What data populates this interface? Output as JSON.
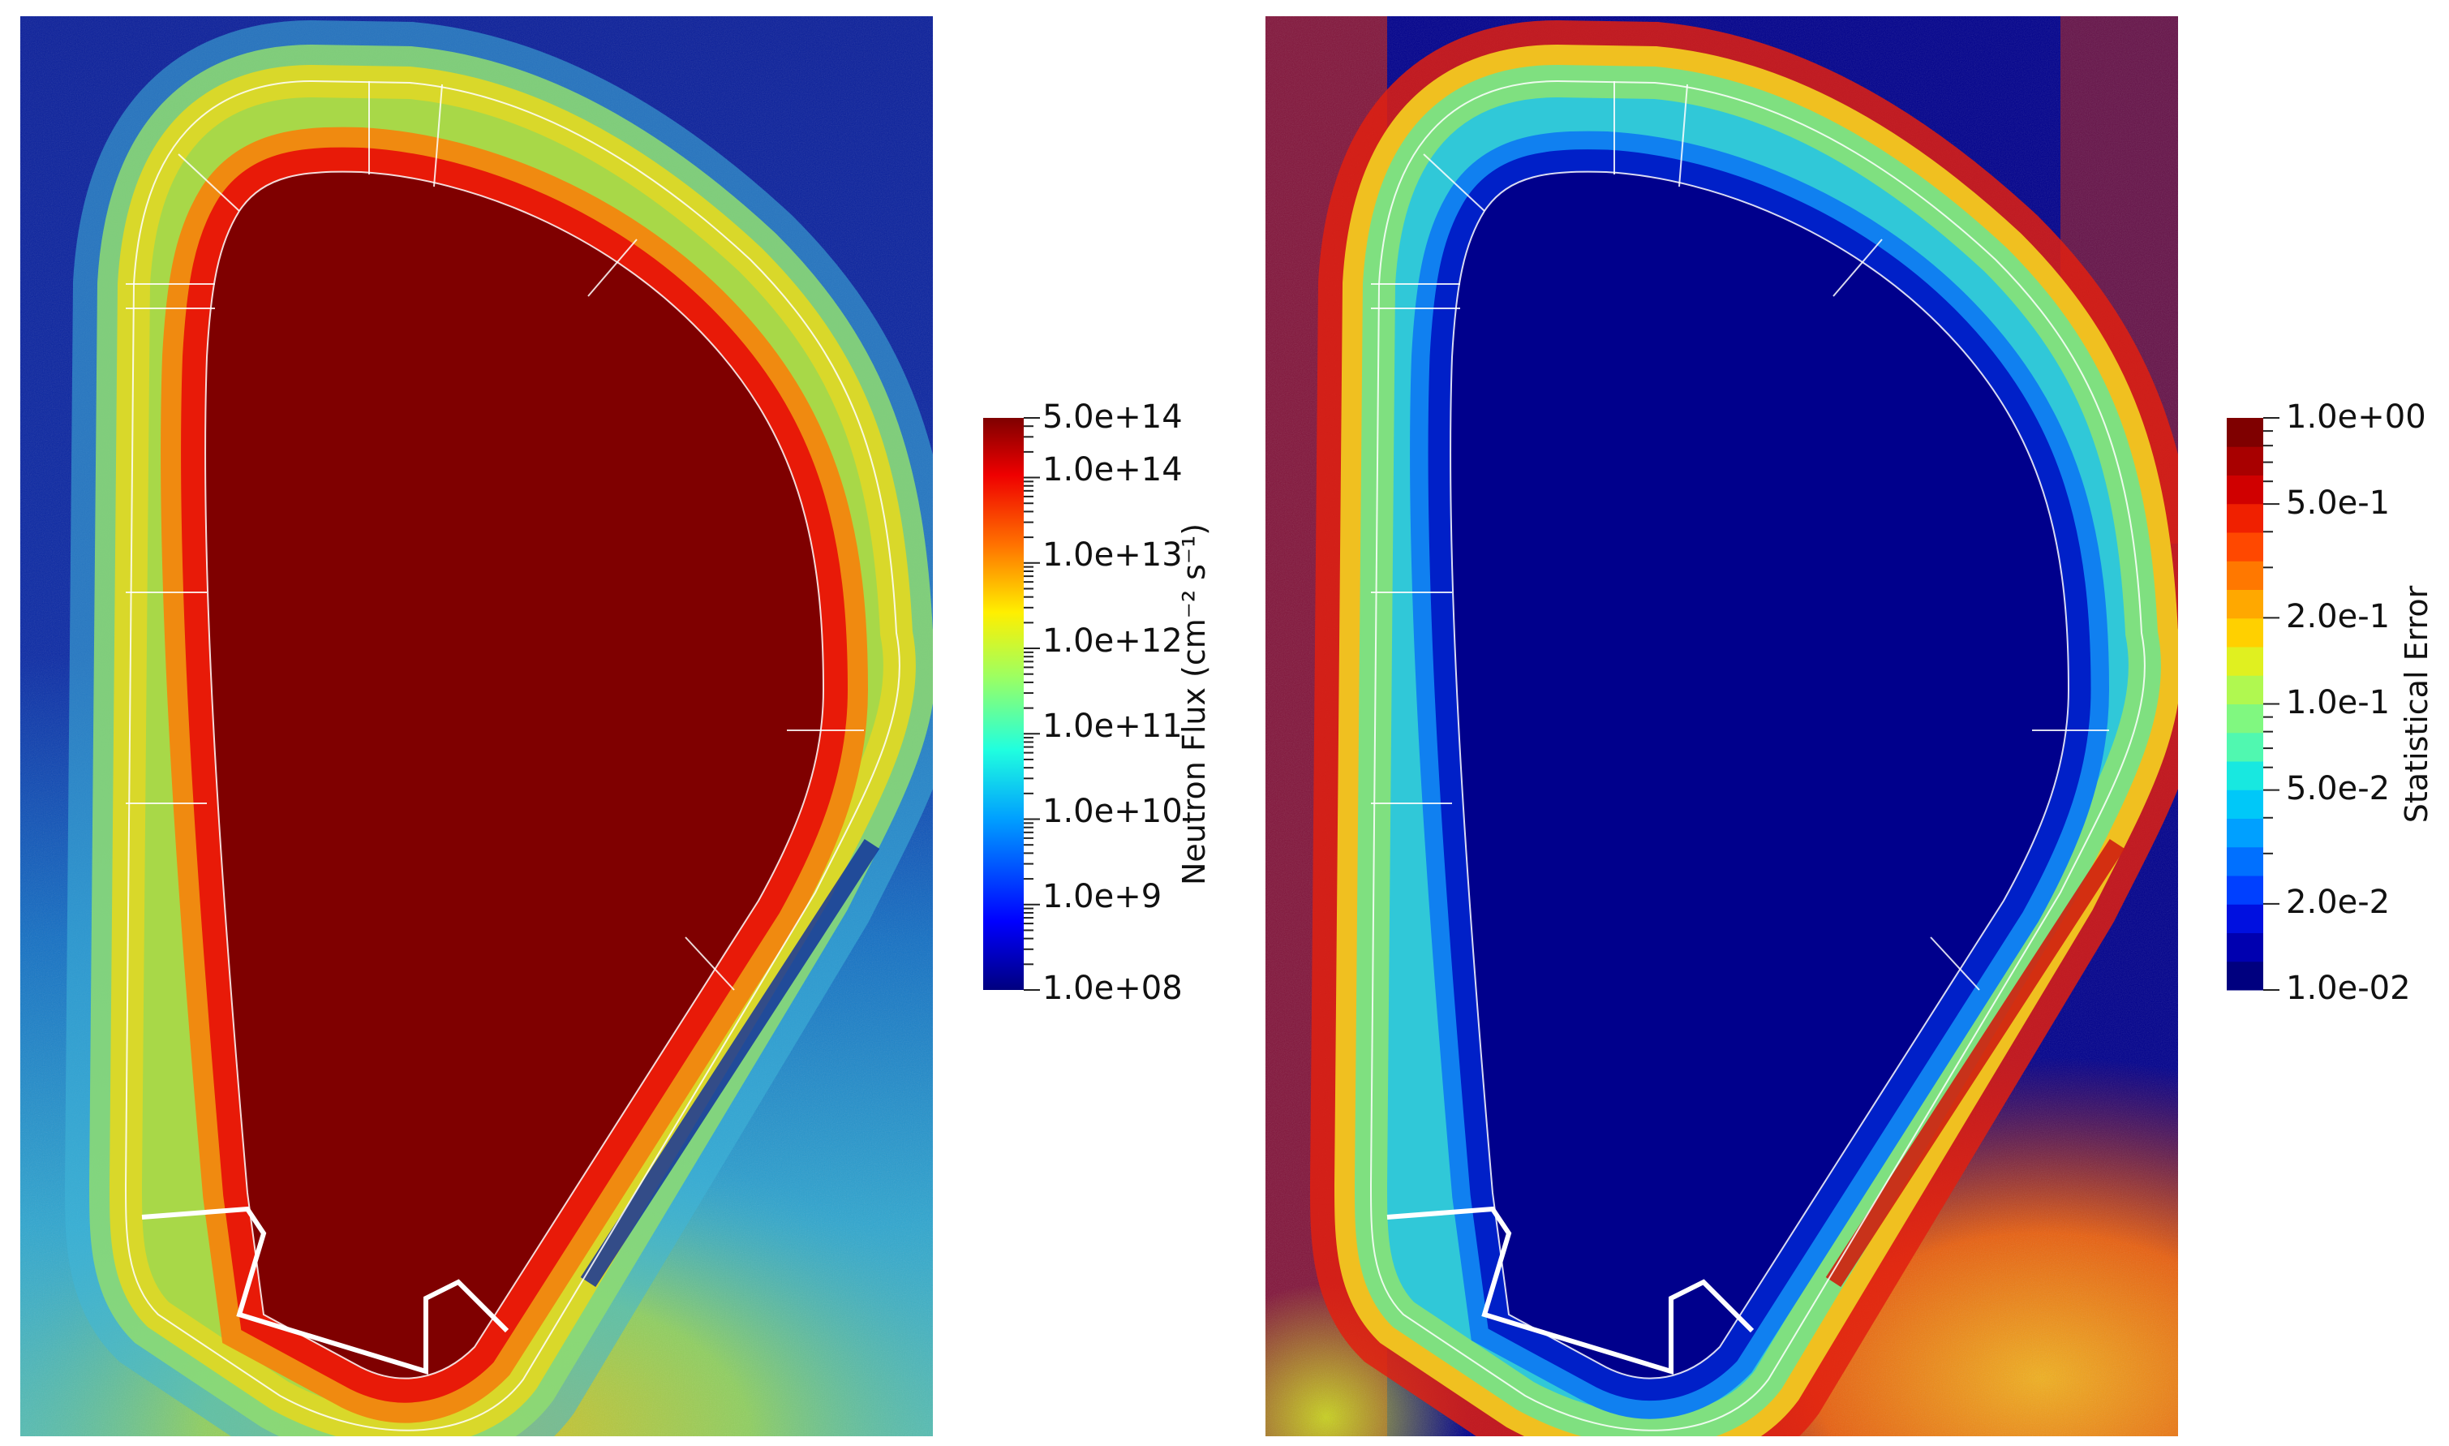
{
  "panels": [
    {
      "id": "neutron-flux",
      "colorbar": {
        "title": "Neutron Flux (cm⁻² s⁻¹)",
        "tick_labels": [
          "5.0e+14",
          "1.0e+14",
          "1.0e+13",
          "1.0e+12",
          "1.0e+11",
          "1.0e+10",
          "1.0e+9",
          "1.0e+08"
        ],
        "scale": "log",
        "colormap": "jet",
        "range": [
          100000000,
          500000000000000
        ]
      },
      "colors": {
        "interior": "#7f0000",
        "background": "#0a1f96",
        "lower_region": "#3aa7c8"
      }
    },
    {
      "id": "statistical-error",
      "colorbar": {
        "title": "Statistical Error",
        "tick_labels": [
          "1.0e+00",
          "5.0e-1",
          "2.0e-1",
          "1.0e-1",
          "5.0e-2",
          "2.0e-2",
          "1.0e-02"
        ],
        "scale": "log",
        "colormap": "jet (discrete)",
        "range": [
          0.01,
          1.0
        ]
      },
      "colors": {
        "interior": "#00008c",
        "background": "#00008c",
        "lower_region": "#e07a10"
      }
    }
  ]
}
